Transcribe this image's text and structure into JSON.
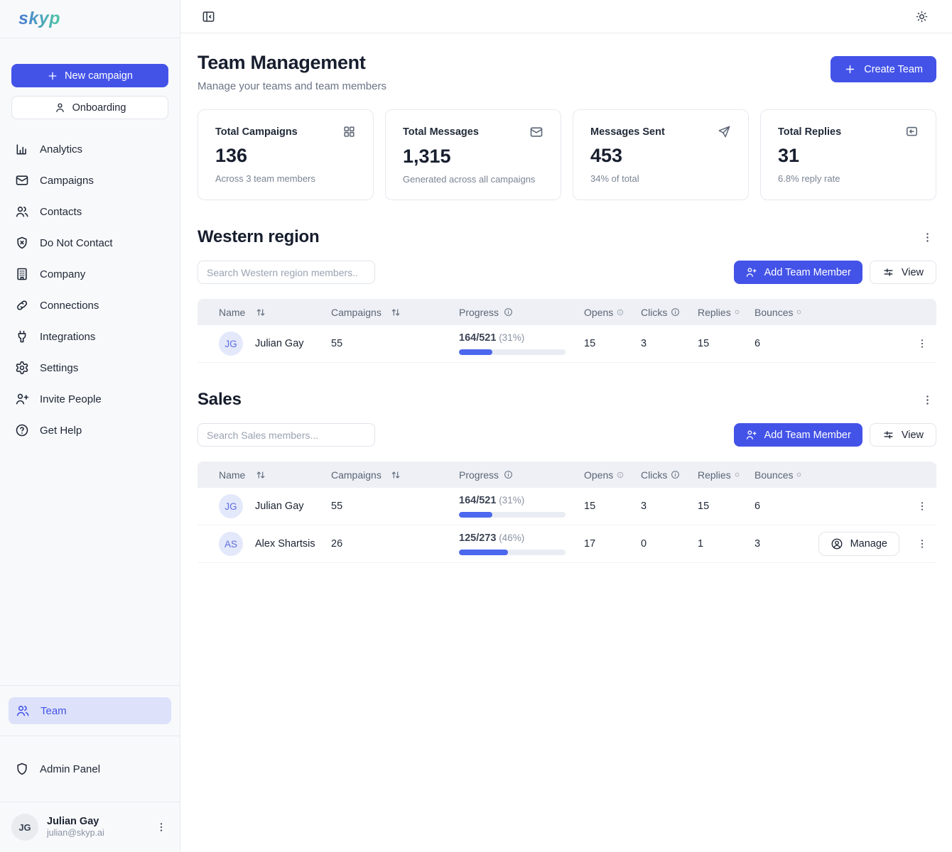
{
  "brand": {
    "logo": "skyp"
  },
  "sidebar": {
    "new_campaign_label": "New campaign",
    "onboarding_label": "Onboarding",
    "items": [
      {
        "label": "Analytics"
      },
      {
        "label": "Campaigns"
      },
      {
        "label": "Contacts"
      },
      {
        "label": "Do Not Contact"
      },
      {
        "label": "Company"
      },
      {
        "label": "Connections"
      },
      {
        "label": "Integrations"
      },
      {
        "label": "Settings"
      },
      {
        "label": "Invite People"
      },
      {
        "label": "Get Help"
      }
    ],
    "team_label": "Team",
    "admin_label": "Admin Panel",
    "user": {
      "initials": "JG",
      "name": "Julian Gay",
      "email": "julian@skyp.ai"
    }
  },
  "header": {
    "title": "Team Management",
    "subtitle": "Manage your teams and team members",
    "create_team_label": "Create Team"
  },
  "stats": [
    {
      "label": "Total Campaigns",
      "value": "136",
      "sub": "Across 3 team members",
      "icon": "grid-icon"
    },
    {
      "label": "Total Messages",
      "value": "1,315",
      "sub": "Generated across all campaigns",
      "icon": "mail-icon"
    },
    {
      "label": "Messages Sent",
      "value": "453",
      "sub": "34% of total",
      "icon": "send-icon"
    },
    {
      "label": "Total Replies",
      "value": "31",
      "sub": "6.8% reply rate",
      "icon": "reply-icon"
    }
  ],
  "table": {
    "headers": [
      "Name",
      "Campaigns",
      "Progress",
      "Opens",
      "Clicks",
      "Replies",
      "Bounces"
    ]
  },
  "teams": [
    {
      "name": "Western region",
      "search_placeholder": "Search Western region members..",
      "add_member_label": "Add Team Member",
      "view_label": "View",
      "members": [
        {
          "initials": "JG",
          "name": "Julian Gay",
          "campaigns": "55",
          "progress": "164/521",
          "pct": "(31%)",
          "pct_value": 31,
          "opens": "15",
          "clicks": "3",
          "replies": "15",
          "bounces": "6",
          "manage": false,
          "manage_label": "Manage"
        }
      ]
    },
    {
      "name": "Sales",
      "search_placeholder": "Search Sales members...",
      "add_member_label": "Add Team Member",
      "view_label": "View",
      "members": [
        {
          "initials": "JG",
          "name": "Julian Gay",
          "campaigns": "55",
          "progress": "164/521",
          "pct": "(31%)",
          "pct_value": 31,
          "opens": "15",
          "clicks": "3",
          "replies": "15",
          "bounces": "6",
          "manage": false,
          "manage_label": "Manage"
        },
        {
          "initials": "AS",
          "name": "Alex Shartsis",
          "campaigns": "26",
          "progress": "125/273",
          "pct": "(46%)",
          "pct_value": 46,
          "opens": "17",
          "clicks": "0",
          "replies": "1",
          "bounces": "3",
          "manage": true,
          "manage_label": "Manage"
        }
      ]
    }
  ],
  "colors": {
    "primary": "#4353e8",
    "progress_fill": "#4c68ee",
    "active_item_bg": "#dde2fa",
    "avatar_bg": "#e4e8fb",
    "table_header_bg": "#eef0f5",
    "logo_gradient_start": "#4a7bd4",
    "logo_gradient_end": "#4ec7a5"
  }
}
